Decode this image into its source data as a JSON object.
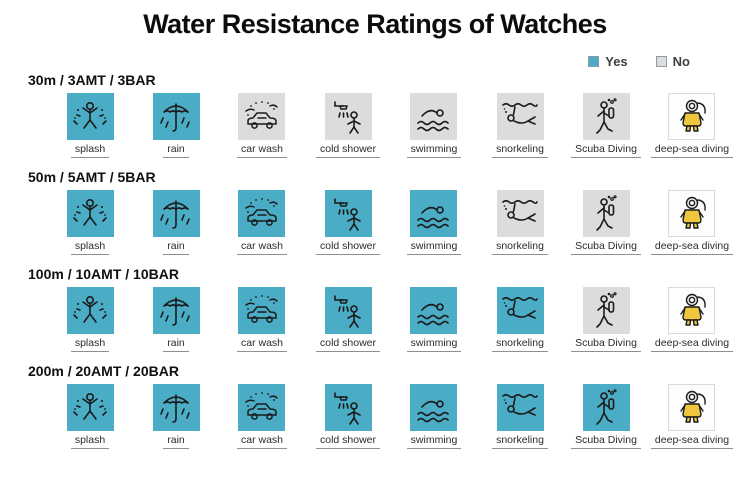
{
  "title": "Water Resistance Ratings of Watches",
  "legend": {
    "yes_label": "Yes",
    "no_label": "No"
  },
  "colors": {
    "yes": "#4bacc6",
    "no": "#dcdcdc",
    "never": "#fdfdfd"
  },
  "activities": [
    "splash",
    "rain",
    "car wash",
    "cold shower",
    "swimming",
    "snorkeling",
    "Scuba Diving",
    "deep-sea diving"
  ],
  "activity_slugs": [
    "splash",
    "rain",
    "car-wash",
    "cold-shower",
    "swimming",
    "snorkeling",
    "scuba-diving",
    "deep-sea-diving"
  ],
  "rows": [
    {
      "label": "30m / 3AMT / 3BAR",
      "ratings": [
        "yes",
        "yes",
        "no",
        "no",
        "no",
        "no",
        "no",
        "never"
      ]
    },
    {
      "label": "50m / 5AMT / 5BAR",
      "ratings": [
        "yes",
        "yes",
        "yes",
        "yes",
        "yes",
        "no",
        "no",
        "never"
      ]
    },
    {
      "label": "100m / 10AMT / 10BAR",
      "ratings": [
        "yes",
        "yes",
        "yes",
        "yes",
        "yes",
        "yes",
        "no",
        "never"
      ]
    },
    {
      "label": "200m / 20AMT / 20BAR",
      "ratings": [
        "yes",
        "yes",
        "yes",
        "yes",
        "yes",
        "yes",
        "yes",
        "never"
      ]
    }
  ],
  "chart_data": {
    "type": "table",
    "title": "Water Resistance Ratings of Watches",
    "columns": [
      "splash",
      "rain",
      "car wash",
      "cold shower",
      "swimming",
      "snorkeling",
      "Scuba Diving",
      "deep-sea diving"
    ],
    "rows": [
      {
        "rating": "30m / 3AMT / 3BAR",
        "values": [
          "Yes",
          "Yes",
          "No",
          "No",
          "No",
          "No",
          "No",
          "No"
        ]
      },
      {
        "rating": "50m / 5AMT / 5BAR",
        "values": [
          "Yes",
          "Yes",
          "Yes",
          "Yes",
          "Yes",
          "No",
          "No",
          "No"
        ]
      },
      {
        "rating": "100m / 10AMT / 10BAR",
        "values": [
          "Yes",
          "Yes",
          "Yes",
          "Yes",
          "Yes",
          "Yes",
          "No",
          "No"
        ]
      },
      {
        "rating": "200m / 20AMT / 20BAR",
        "values": [
          "Yes",
          "Yes",
          "Yes",
          "Yes",
          "Yes",
          "Yes",
          "Yes",
          "No"
        ]
      }
    ],
    "legend": [
      "Yes",
      "No"
    ],
    "legend_position": "top-right"
  }
}
